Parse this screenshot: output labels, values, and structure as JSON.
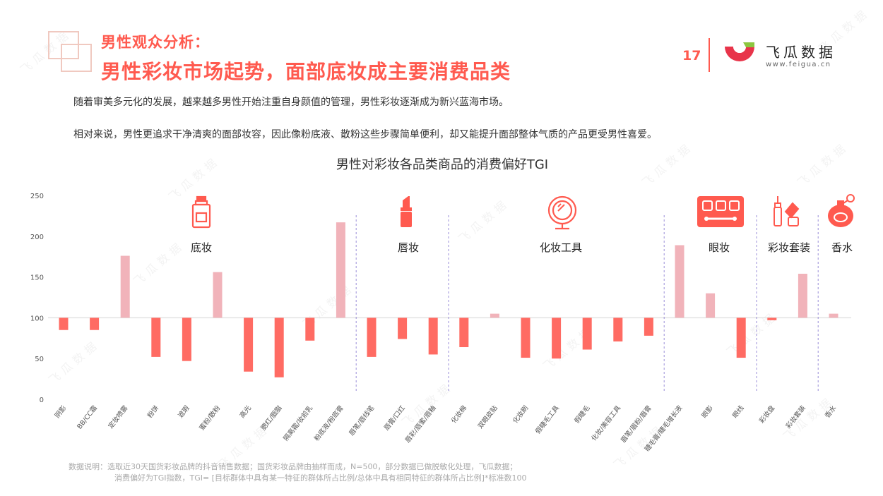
{
  "header": {
    "kicker": "男性观众分析：",
    "headline": "男性彩妆市场起势，面部底妆成主要消费品类",
    "page_number": "17",
    "brand_name": "飞瓜数据",
    "brand_url": "www.feigua.cn",
    "watermark": "飞瓜数据"
  },
  "body": {
    "paragraph1": "随着审美多元化的发展，越来越多男性开始注重自身颜值的管理，男性彩妆逐渐成为新兴蓝海市场。",
    "paragraph2": "相对来说，男性更追求干净清爽的面部妆容，因此像粉底液、散粉这些步骤简单便利，却又能提升面部整体气质的产品更受男性喜爱。"
  },
  "footnote": {
    "line1": "数据说明：选取近30天国货彩妆品牌的抖音销售数据；国货彩妆品牌由抽样而成，N=500，部分数据已做脱敏化处理，飞瓜数据；",
    "line2": "消费偏好为TGI指数，TGI= [目标群体中具有某一特征的群体所占比例/总体中具有相同特征的群体所占比例]*标准数100"
  },
  "colors": {
    "accent": "#ff5a4f",
    "bar_below": "#ff6b63",
    "bar_above": "#f1b3ba",
    "divider": "#9b8fd8",
    "axis_text": "#555555"
  },
  "chart_data": {
    "type": "bar",
    "title": "男性对彩妆各品类商品的消费偏好TGI",
    "baseline": 100,
    "ylim": [
      0,
      250
    ],
    "yticks": [
      0,
      50,
      100,
      150,
      200,
      250
    ],
    "categories": [
      "阴影",
      "BB/CC霜",
      "定妆喷雾",
      "粉饼",
      "遮瑕",
      "蜜粉/散粉",
      "高光",
      "腮红/胭脂",
      "隔离霜/妆前乳",
      "粉底液/粉底膏",
      "唇笔/唇线笔",
      "唇膏/口红",
      "唇彩/唇蜜/唇釉",
      "化妆棉",
      "双眼皮贴",
      "化妆刷",
      "假睫毛工具",
      "假睫毛",
      "化妆/美容工具",
      "眉笔/眉粉/眉膏",
      "睫毛膏/睫毛增长液",
      "眼影",
      "眼线",
      "彩妆盘",
      "彩妆套装",
      "香水"
    ],
    "values": [
      85,
      85,
      176,
      52,
      47,
      156,
      34,
      27,
      72,
      217,
      52,
      74,
      55,
      64,
      105,
      51,
      50,
      61,
      71,
      78,
      189,
      130,
      51,
      97,
      154,
      105
    ],
    "groups": [
      {
        "name": "底妆",
        "icon": "foundation-bottle-icon",
        "start": 0,
        "end": 9
      },
      {
        "name": "唇妆",
        "icon": "lipstick-icon",
        "start": 10,
        "end": 12
      },
      {
        "name": "化妆工具",
        "icon": "mirror-icon",
        "start": 13,
        "end": 19
      },
      {
        "name": "眼妆",
        "icon": "eyeshadow-palette-icon",
        "start": 20,
        "end": 22
      },
      {
        "name": "彩妆套装",
        "icon": "makeup-set-icon",
        "start": 23,
        "end": 24
      },
      {
        "name": "香水",
        "icon": "perfume-bottle-icon",
        "start": 25,
        "end": 25
      }
    ],
    "grid": false,
    "legend": "none"
  }
}
